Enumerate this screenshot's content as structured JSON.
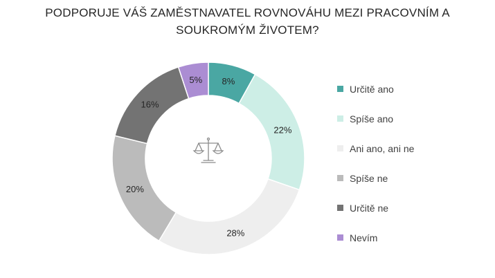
{
  "chart_data": {
    "type": "pie",
    "variant": "donut",
    "title_lines": [
      "PODPORUJE VÁŠ ZAMĚSTNAVATEL ROVNOVÁHU MEZI PRACOVNÍM A",
      "SOUKROMÝM ŽIVOTEM?"
    ],
    "categories": [
      "Určitě ano",
      "Spíše ano",
      "Ani ano, ani ne",
      "Spíše ne",
      "Určitě ne",
      "Nevím"
    ],
    "values": [
      8,
      22,
      28,
      20,
      16,
      5
    ],
    "labels": [
      "8%",
      "22%",
      "28%",
      "20%",
      "16%",
      "5%"
    ],
    "colors": [
      "#4aa7a3",
      "#cdeee6",
      "#eeeeee",
      "#bbbbbb",
      "#737373",
      "#ab8dd3"
    ],
    "legend_position": "right",
    "center_icon": "scales-icon"
  }
}
